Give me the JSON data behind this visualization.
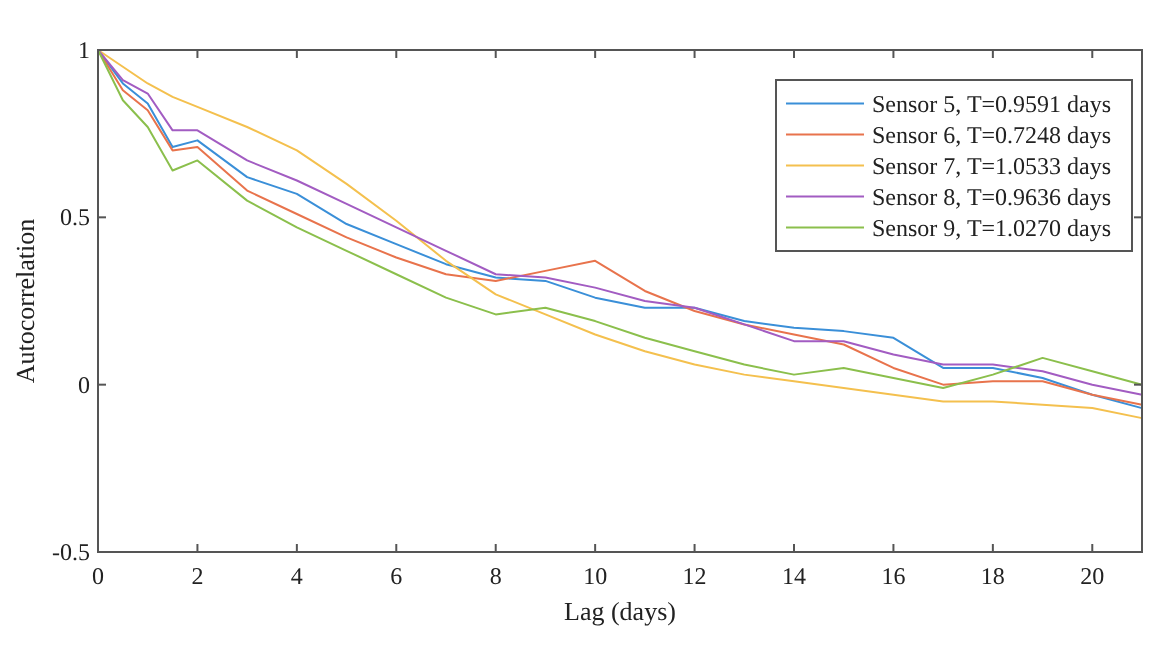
{
  "chart_data": {
    "type": "line",
    "xlabel": "Lag (days)",
    "ylabel": "Autocorrelation",
    "x": [
      0,
      0.5,
      1,
      1.5,
      2,
      3,
      4,
      5,
      6,
      7,
      8,
      9,
      10,
      11,
      12,
      13,
      14,
      15,
      16,
      17,
      18,
      19,
      20,
      21
    ],
    "xlim": [
      0,
      21
    ],
    "xticks": [
      0,
      2,
      4,
      6,
      8,
      10,
      12,
      14,
      16,
      18,
      20
    ],
    "ylim": [
      -0.5,
      1
    ],
    "yticks": [
      -0.5,
      0,
      0.5,
      1
    ],
    "grid": false,
    "legend": "top right",
    "marker": "none",
    "line_style": "solid",
    "series": [
      {
        "name": "Sensor 5, T=0.9591 days",
        "color": "#3a8fd8",
        "values": [
          1,
          0.9,
          0.84,
          0.71,
          0.73,
          0.62,
          0.57,
          0.48,
          0.42,
          0.36,
          0.32,
          0.31,
          0.26,
          0.23,
          0.23,
          0.19,
          0.17,
          0.16,
          0.14,
          0.05,
          0.05,
          0.02,
          -0.03,
          -0.07
        ]
      },
      {
        "name": "Sensor 6, T=0.7248 days",
        "color": "#e8734c",
        "values": [
          1,
          0.88,
          0.82,
          0.7,
          0.71,
          0.58,
          0.51,
          0.44,
          0.38,
          0.33,
          0.31,
          0.34,
          0.37,
          0.28,
          0.22,
          0.18,
          0.15,
          0.12,
          0.05,
          0,
          0.01,
          0.01,
          -0.03,
          -0.06
        ]
      },
      {
        "name": "Sensor 7, T=1.0533 days",
        "color": "#f4c04e",
        "values": [
          1,
          0.95,
          0.9,
          0.86,
          0.83,
          0.77,
          0.7,
          0.6,
          0.49,
          0.37,
          0.27,
          0.21,
          0.15,
          0.1,
          0.06,
          0.03,
          0.01,
          -0.01,
          -0.03,
          -0.05,
          -0.05,
          -0.06,
          -0.07,
          -0.1
        ]
      },
      {
        "name": "Sensor 8, T=0.9636 days",
        "color": "#a25cc2",
        "values": [
          1,
          0.91,
          0.87,
          0.76,
          0.76,
          0.67,
          0.61,
          0.54,
          0.47,
          0.4,
          0.33,
          0.32,
          0.29,
          0.25,
          0.23,
          0.18,
          0.13,
          0.13,
          0.09,
          0.06,
          0.06,
          0.04,
          0,
          -0.03
        ]
      },
      {
        "name": "Sensor 9, T=1.0270 days",
        "color": "#8bbf4c",
        "values": [
          1,
          0.85,
          0.77,
          0.64,
          0.67,
          0.55,
          0.47,
          0.4,
          0.33,
          0.26,
          0.21,
          0.23,
          0.19,
          0.14,
          0.1,
          0.06,
          0.03,
          0.05,
          0.02,
          -0.01,
          0.03,
          0.08,
          0.04,
          0
        ]
      }
    ]
  }
}
